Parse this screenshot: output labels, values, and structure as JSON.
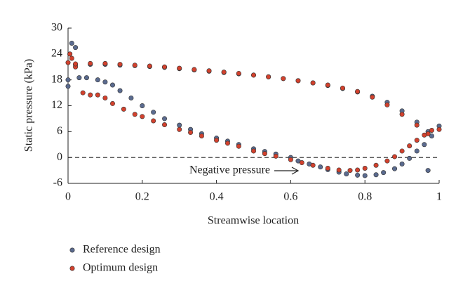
{
  "chart_data": {
    "type": "scatter",
    "xlabel": "Streamwise location",
    "ylabel": "Static pressure (kPa)",
    "annotation": "Negative pressure",
    "reference_line": 0,
    "xlim": [
      0,
      1
    ],
    "ylim": [
      -6,
      30
    ],
    "xticks": [
      0,
      0.2,
      0.4,
      0.6,
      0.8,
      1
    ],
    "yticks": [
      -6,
      0,
      6,
      12,
      18,
      24,
      30
    ],
    "legend": "bottom-left",
    "series": [
      {
        "name": "Reference design",
        "color": "#5b6b8f",
        "x": [
          0,
          0,
          0.005,
          0.01,
          0.02,
          0.02,
          0.06,
          0.1,
          0.14,
          0.18,
          0.22,
          0.26,
          0.3,
          0.34,
          0.38,
          0.42,
          0.46,
          0.5,
          0.54,
          0.58,
          0.62,
          0.66,
          0.7,
          0.74,
          0.78,
          0.82,
          0.86,
          0.9,
          0.94,
          0.97,
          1.0,
          0.03,
          0.05,
          0.08,
          0.1,
          0.12,
          0.14,
          0.17,
          0.2,
          0.23,
          0.26,
          0.3,
          0.33,
          0.36,
          0.4,
          0.43,
          0.46,
          0.5,
          0.53,
          0.56,
          0.6,
          0.62,
          0.65,
          0.68,
          0.7,
          0.73,
          0.75,
          0.78,
          0.8,
          0.83,
          0.85,
          0.88,
          0.9,
          0.92,
          0.94,
          0.96,
          0.97,
          0.98
        ],
        "y": [
          18,
          16.5,
          24,
          26.5,
          25.5,
          21.5,
          21.6,
          21.6,
          21.4,
          21.3,
          21.1,
          20.9,
          20.6,
          20.3,
          20.0,
          19.7,
          19.4,
          19.1,
          18.7,
          18.3,
          17.8,
          17.3,
          16.7,
          16.0,
          15.2,
          14.2,
          12.8,
          10.8,
          8.2,
          6.0,
          7.3,
          18.5,
          18.5,
          18.0,
          17.5,
          16.8,
          15.5,
          13.8,
          12.0,
          10.5,
          9.0,
          7.5,
          6.5,
          5.5,
          4.5,
          3.8,
          3.0,
          2.0,
          1.4,
          0.8,
          0,
          -0.8,
          -1.5,
          -2.2,
          -2.8,
          -3.4,
          -3.8,
          -4.1,
          -4.2,
          -4.0,
          -3.5,
          -2.6,
          -1.5,
          -0.2,
          1.5,
          3.0,
          -3.0,
          5.0
        ]
      },
      {
        "name": "Optimum design",
        "color": "#d2412d",
        "x": [
          0,
          0.005,
          0.01,
          0.02,
          0.02,
          0.06,
          0.1,
          0.14,
          0.18,
          0.22,
          0.26,
          0.3,
          0.34,
          0.38,
          0.42,
          0.46,
          0.5,
          0.54,
          0.58,
          0.62,
          0.66,
          0.7,
          0.74,
          0.78,
          0.82,
          0.86,
          0.9,
          0.94,
          0.97,
          1.0,
          0.04,
          0.06,
          0.08,
          0.1,
          0.12,
          0.15,
          0.18,
          0.2,
          0.23,
          0.26,
          0.3,
          0.33,
          0.36,
          0.4,
          0.43,
          0.46,
          0.5,
          0.53,
          0.56,
          0.6,
          0.63,
          0.66,
          0.7,
          0.73,
          0.76,
          0.78,
          0.8,
          0.83,
          0.86,
          0.88,
          0.9,
          0.92,
          0.94,
          0.96,
          0.98
        ],
        "y": [
          22,
          24,
          23,
          21,
          21.7,
          21.8,
          21.8,
          21.6,
          21.4,
          21.2,
          21.0,
          20.7,
          20.4,
          20.1,
          19.8,
          19.5,
          19.1,
          18.7,
          18.3,
          17.8,
          17.3,
          16.8,
          16.1,
          15.3,
          14.0,
          12.2,
          10.0,
          7.5,
          5.5,
          6.5,
          15.0,
          14.5,
          14.5,
          13.8,
          12.5,
          11.2,
          10.0,
          9.5,
          8.5,
          7.6,
          6.5,
          5.8,
          5.0,
          4.0,
          3.3,
          2.6,
          1.5,
          0.9,
          0.3,
          -0.5,
          -1.2,
          -1.8,
          -2.5,
          -2.9,
          -3.0,
          -2.9,
          -2.5,
          -1.8,
          -0.8,
          0.2,
          1.5,
          2.7,
          4.0,
          5.2,
          6.3
        ]
      }
    ]
  }
}
